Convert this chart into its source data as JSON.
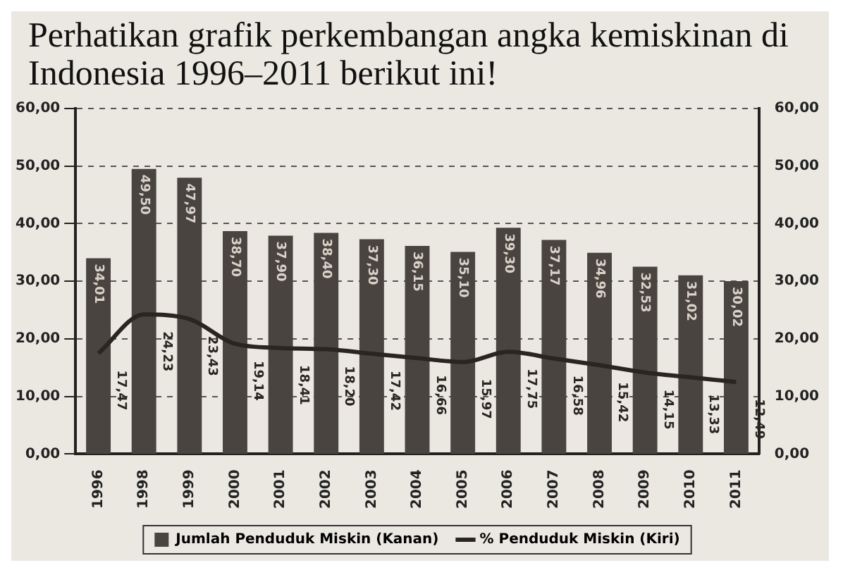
{
  "chart_data": {
    "type": "bar",
    "title": "Perhatikan grafik perkembangan angka kemiskinan di Indonesia 1996–2011 berikut ini!",
    "categories": [
      "1996",
      "1998",
      "1999",
      "2000",
      "2001",
      "2002",
      "2003",
      "2004",
      "2005",
      "2006",
      "2007",
      "2008",
      "2009",
      "2010",
      "2011"
    ],
    "series": [
      {
        "name": "Jumlah Penduduk Miskin (Kanan)",
        "axis": "y2",
        "color": "#4a4440",
        "values": [
          34.01,
          49.5,
          47.97,
          38.7,
          37.9,
          38.4,
          37.3,
          36.15,
          35.1,
          39.3,
          37.17,
          34.96,
          32.53,
          31.02,
          30.02
        ],
        "value_labels": [
          "34,01",
          "49,50",
          "47,97",
          "38,70",
          "37,90",
          "38,40",
          "37,30",
          "36,15",
          "35,10",
          "39,30",
          "37,17",
          "34,96",
          "32,53",
          "31,02",
          "30,02"
        ]
      },
      {
        "name": "% Penduduk Miskin (Kiri)",
        "type": "line",
        "axis": "y",
        "color": "#2a2520",
        "values": [
          17.47,
          24.23,
          23.43,
          19.14,
          18.41,
          18.2,
          17.42,
          16.66,
          15.97,
          17.75,
          16.58,
          15.42,
          14.15,
          13.33,
          12.49
        ],
        "value_labels": [
          "17,47",
          "24,23",
          "23,43",
          "19,14",
          "18,41",
          "18,20",
          "17,42",
          "16,66",
          "15,97",
          "17,75",
          "16,58",
          "15,42",
          "14,15",
          "13,33",
          "12,49"
        ]
      }
    ],
    "ylim": [
      0,
      60
    ],
    "yticks": [
      {
        "value": 0,
        "label": "0,00"
      },
      {
        "value": 10,
        "label": "10,00"
      },
      {
        "value": 20,
        "label": "20,00"
      },
      {
        "value": 30,
        "label": "30,00"
      },
      {
        "value": 40,
        "label": "40,00"
      },
      {
        "value": 50,
        "label": "50,00"
      },
      {
        "value": 60,
        "label": "60,00"
      }
    ],
    "y2lim": [
      0,
      60
    ],
    "y2ticks": [
      {
        "value": 0,
        "label": "0,00"
      },
      {
        "value": 10,
        "label": "10,00"
      },
      {
        "value": 20,
        "label": "20,00"
      },
      {
        "value": 30,
        "label": "30,00"
      },
      {
        "value": 40,
        "label": "40,00"
      },
      {
        "value": 50,
        "label": "50,00"
      },
      {
        "value": 60,
        "label": "60,00"
      }
    ],
    "grid": "y",
    "legend": "bottom",
    "marker": "none",
    "line_style": "solid"
  }
}
